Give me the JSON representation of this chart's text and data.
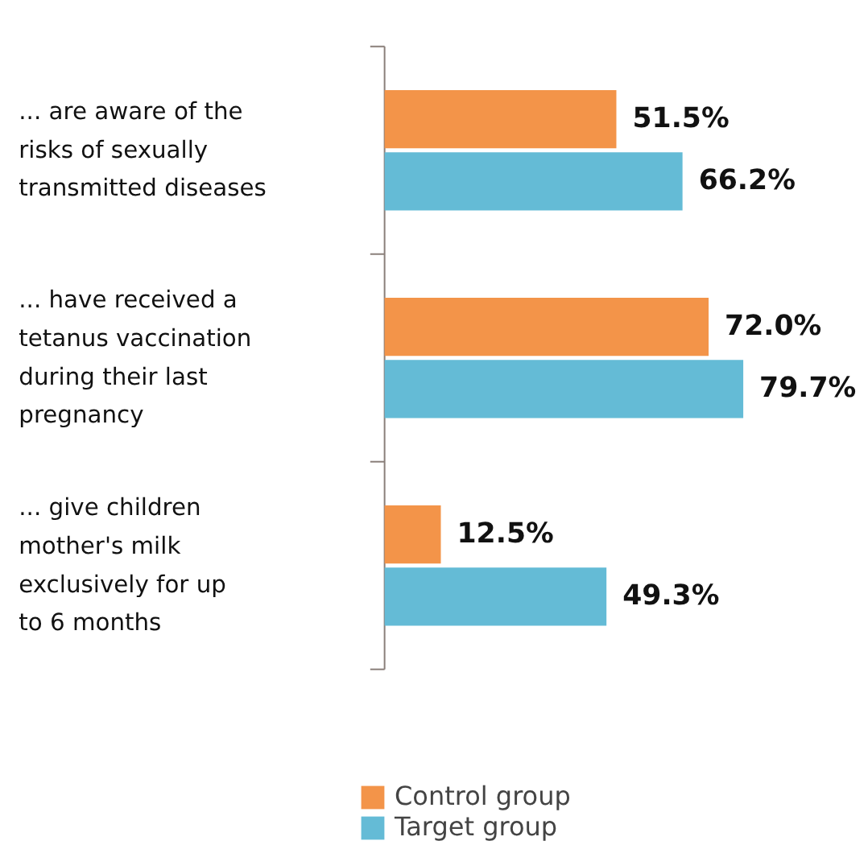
{
  "chart_data": {
    "type": "bar",
    "orientation": "horizontal",
    "categories": [
      "... are aware of the\nrisks of sexually\ntransmitted diseases",
      "... have received a\ntetanus vaccination\nduring their last\npregnancy",
      "... give children\nmother's milk\nexclusively for up\nto 6 months"
    ],
    "series": [
      {
        "name": "Control group",
        "color": "#f39449",
        "values": [
          51.5,
          72.0,
          12.5
        ],
        "value_labels": [
          "51.5%",
          "72.0%",
          "12.5%"
        ]
      },
      {
        "name": "Target group",
        "color": "#64bbd6",
        "values": [
          66.2,
          79.7,
          49.3
        ],
        "value_labels": [
          "66.2%",
          "79.7%",
          "49.3%"
        ]
      }
    ],
    "legend": "bottom"
  }
}
